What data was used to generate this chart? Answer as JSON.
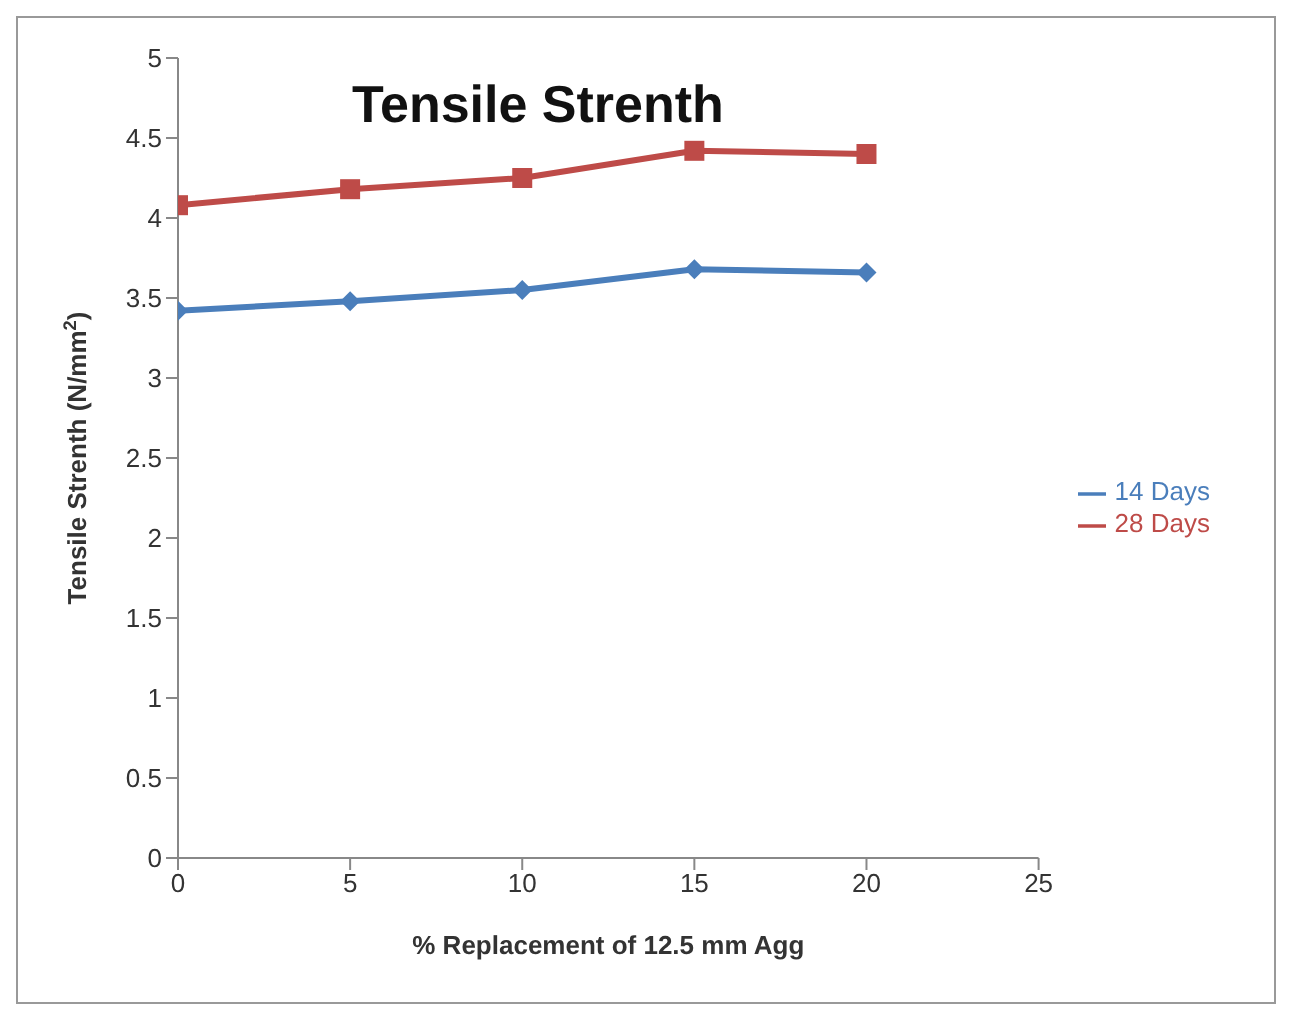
{
  "chart_data": {
    "type": "line",
    "title": "Tensile Strenth",
    "xlabel": "% Replacement of 12.5 mm Agg",
    "ylabel": "Tensile Strenth (N/mm$^{2}$)",
    "x": [
      0,
      5,
      10,
      15,
      20
    ],
    "xlim": [
      0,
      25
    ],
    "xticks": [
      0,
      5,
      10,
      15,
      20,
      25
    ],
    "ylim": [
      0,
      5
    ],
    "yticks": [
      0,
      0.5,
      1,
      1.5,
      2,
      2.5,
      3,
      3.5,
      4,
      4.5,
      5
    ],
    "grid": false,
    "legend": "right",
    "series": [
      {
        "name": "14 Days",
        "color": "#4a7ebb",
        "marker": "diamond",
        "values": [
          3.42,
          3.48,
          3.55,
          3.68,
          3.66
        ]
      },
      {
        "name": "28 Days",
        "color": "#be4b48",
        "marker": "square",
        "values": [
          4.08,
          4.18,
          4.25,
          4.42,
          4.4
        ]
      }
    ]
  }
}
